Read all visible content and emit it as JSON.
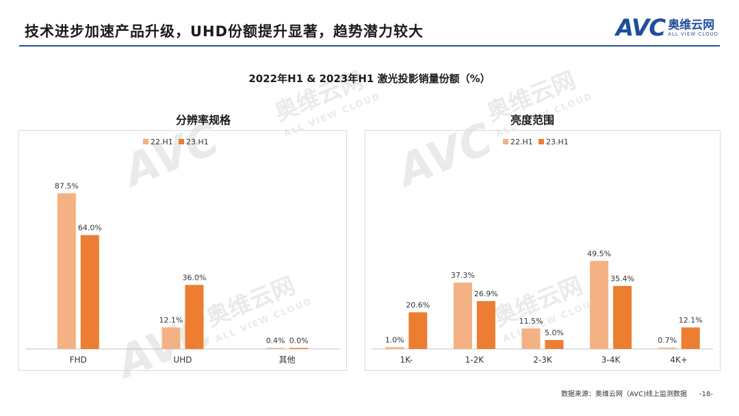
{
  "header": {
    "title": "技术进步加速产品升级，UHD份额提升显著，趋势潜力较大",
    "logo_mark": "AVC",
    "logo_cn": "奥维云网",
    "logo_en": "ALL VIEW CLOUD"
  },
  "main_title": "2022年H1 & 2023年H1 激光投影销量份额（%）",
  "colors": {
    "series1": "#f4b183",
    "series2": "#ed7d31",
    "accent": "#1f4e96"
  },
  "chart_data": [
    {
      "type": "bar",
      "title": "分辨率规格",
      "categories": [
        "FHD",
        "UHD",
        "其他"
      ],
      "series": [
        {
          "name": "22.H1",
          "values": [
            87.5,
            12.1,
            0.4
          ],
          "labels": [
            "87.5%",
            "12.1%",
            "0.4%"
          ]
        },
        {
          "name": "23.H1",
          "values": [
            64.0,
            36.0,
            0.0
          ],
          "labels": [
            "64.0%",
            "36.0%",
            "0.0%"
          ]
        }
      ],
      "ylim": [
        0,
        100
      ],
      "legend": "top-center",
      "grid": false
    },
    {
      "type": "bar",
      "title": "亮度范围",
      "categories": [
        "1K-",
        "1-2K",
        "2-3K",
        "3-4K",
        "4K+"
      ],
      "series": [
        {
          "name": "22.H1",
          "values": [
            1.0,
            37.3,
            11.5,
            49.5,
            0.7
          ],
          "labels": [
            "1.0%",
            "37.3%",
            "11.5%",
            "49.5%",
            "0.7%"
          ]
        },
        {
          "name": "23.H1",
          "values": [
            20.6,
            26.9,
            5.0,
            35.4,
            12.1
          ],
          "labels": [
            "20.6%",
            "26.9%",
            "5.0%",
            "35.4%",
            "12.1%"
          ]
        }
      ],
      "ylim": [
        0,
        100
      ],
      "legend": "top-center",
      "grid": false
    }
  ],
  "footer": {
    "source": "数据来源：奥维云网（AVC)线上监测数据",
    "page": "-18-"
  }
}
